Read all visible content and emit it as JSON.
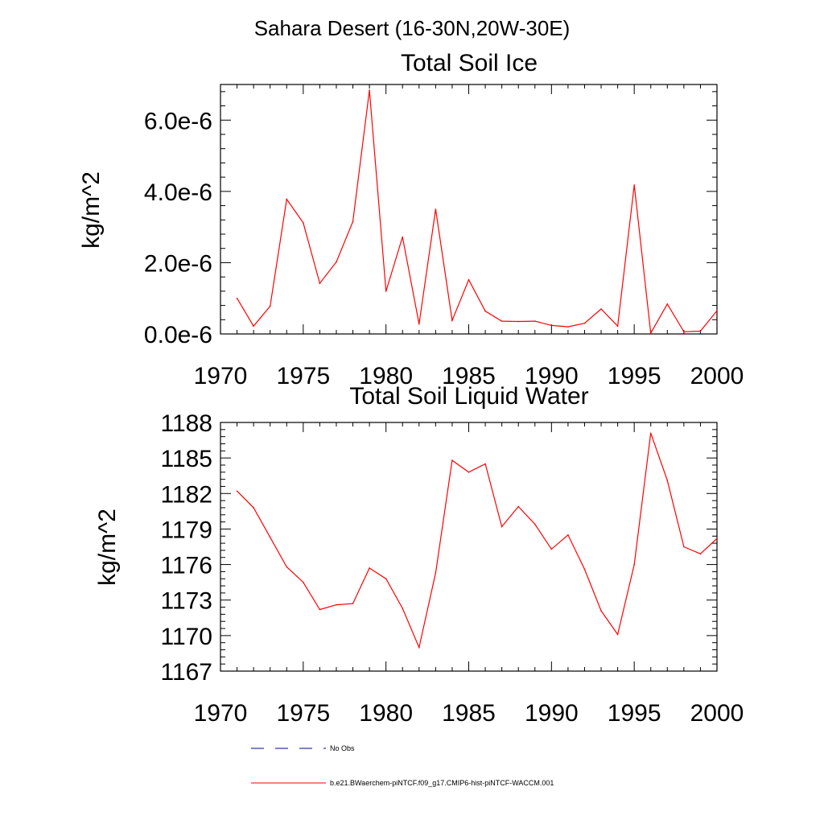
{
  "figure": {
    "suptitle": "Sahara Desert (16-30N,20W-30E)"
  },
  "chart_data": [
    {
      "type": "line",
      "title": "Total Soil Ice",
      "xlabel": "",
      "ylabel": "kg/m^2",
      "xlim": [
        1970,
        2000
      ],
      "ylim": [
        0.0,
        7e-06
      ],
      "xticks": [
        1970,
        1975,
        1980,
        1985,
        1990,
        1995,
        2000
      ],
      "yticks": [
        0.0,
        2e-06,
        4e-06,
        6e-06
      ],
      "ytick_labels": [
        "0.0e-6",
        "2.0e-6",
        "4.0e-6",
        "6.0e-6"
      ],
      "series": [
        {
          "name": "b.e21.BWaerchem-piNTCF.f09_g17.CMIP6-hist-piNTCF-WACCM.001",
          "color": "#ff0000",
          "x": [
            1971,
            1972,
            1973,
            1974,
            1975,
            1976,
            1977,
            1978,
            1979,
            1980,
            1981,
            1982,
            1983,
            1984,
            1985,
            1986,
            1987,
            1988,
            1989,
            1990,
            1991,
            1992,
            1993,
            1994,
            1995,
            1996,
            1997,
            1998,
            1999,
            2000
          ],
          "y": [
            1e-06,
            2.2e-07,
            7.8e-07,
            3.78e-06,
            3.12e-06,
            1.42e-06,
            2.02e-06,
            3.15e-06,
            6.84e-06,
            1.2e-06,
            2.72e-06,
            2.8e-07,
            3.5e-06,
            3.8e-07,
            1.52e-06,
            6.4e-07,
            3.6e-07,
            3.5e-07,
            3.6e-07,
            2.4e-07,
            2e-07,
            3e-07,
            7e-07,
            2.2e-07,
            4.18e-06,
            2e-08,
            8.4e-07,
            6e-08,
            8e-08,
            6.5e-07
          ]
        }
      ]
    },
    {
      "type": "line",
      "title": "Total Soil Liquid Water",
      "xlabel": "",
      "ylabel": "kg/m^2",
      "xlim": [
        1970,
        2000
      ],
      "ylim": [
        1167,
        1188
      ],
      "xticks": [
        1970,
        1975,
        1980,
        1985,
        1990,
        1995,
        2000
      ],
      "yticks": [
        1167,
        1170,
        1173,
        1176,
        1179,
        1182,
        1185,
        1188
      ],
      "ytick_labels": [
        "1167",
        "1170",
        "1173",
        "1176",
        "1179",
        "1182",
        "1185",
        "1188"
      ],
      "series": [
        {
          "name": "b.e21.BWaerchem-piNTCF.f09_g17.CMIP6-hist-piNTCF-WACCM.001",
          "color": "#ff0000",
          "x": [
            1971,
            1972,
            1973,
            1974,
            1975,
            1976,
            1977,
            1978,
            1979,
            1980,
            1981,
            1982,
            1983,
            1984,
            1985,
            1986,
            1987,
            1988,
            1989,
            1990,
            1991,
            1992,
            1993,
            1994,
            1995,
            1996,
            1997,
            1998,
            1999,
            2000
          ],
          "y": [
            1182.2,
            1180.8,
            1178.3,
            1175.8,
            1174.5,
            1172.2,
            1172.6,
            1172.7,
            1175.7,
            1174.8,
            1172.3,
            1169.0,
            1175.3,
            1184.8,
            1183.8,
            1184.5,
            1179.2,
            1180.9,
            1179.4,
            1177.3,
            1178.5,
            1175.6,
            1172.1,
            1170.1,
            1176.0,
            1187.1,
            1183.1,
            1177.5,
            1176.9,
            1178.2
          ]
        }
      ]
    }
  ],
  "legend": {
    "items": [
      {
        "label": "No Obs",
        "color": "#00008b",
        "style": "dashed"
      },
      {
        "label": "b.e21.BWaerchem-piNTCF.f09_g17.CMIP6-hist-piNTCF-WACCM.001",
        "color": "#ff0000",
        "style": "solid"
      }
    ]
  }
}
